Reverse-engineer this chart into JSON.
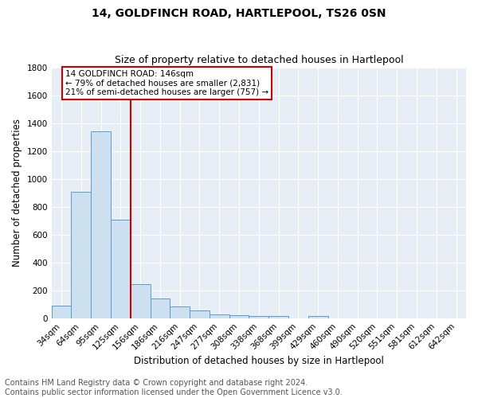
{
  "title": "14, GOLDFINCH ROAD, HARTLEPOOL, TS26 0SN",
  "subtitle": "Size of property relative to detached houses in Hartlepool",
  "xlabel": "Distribution of detached houses by size in Hartlepool",
  "ylabel": "Number of detached properties",
  "bar_labels": [
    "34sqm",
    "64sqm",
    "95sqm",
    "125sqm",
    "156sqm",
    "186sqm",
    "216sqm",
    "247sqm",
    "277sqm",
    "308sqm",
    "338sqm",
    "368sqm",
    "399sqm",
    "429sqm",
    "460sqm",
    "490sqm",
    "520sqm",
    "551sqm",
    "581sqm",
    "612sqm",
    "642sqm"
  ],
  "bar_values": [
    90,
    905,
    1340,
    705,
    245,
    140,
    85,
    55,
    28,
    22,
    18,
    15,
    0,
    18,
    0,
    0,
    0,
    0,
    0,
    0,
    0
  ],
  "bar_color": "#cce0f0",
  "bar_edge_color": "#5b9bd5",
  "ylim": [
    0,
    1800
  ],
  "yticks": [
    0,
    200,
    400,
    600,
    800,
    1000,
    1200,
    1400,
    1600,
    1800
  ],
  "vline_x": 3.5,
  "vline_color": "#cc0000",
  "annotation_text": "14 GOLDFINCH ROAD: 146sqm\n← 79% of detached houses are smaller (2,831)\n21% of semi-detached houses are larger (757) →",
  "annotation_box_color": "#ffffff",
  "annotation_box_edge_color": "#cc0000",
  "footer_text": "Contains HM Land Registry data © Crown copyright and database right 2024.\nContains public sector information licensed under the Open Government Licence v3.0.",
  "bg_color": "#e8eef5",
  "fig_color": "#ffffff",
  "title_fontsize": 10,
  "subtitle_fontsize": 9,
  "axis_label_fontsize": 8.5,
  "tick_fontsize": 7.5,
  "footer_fontsize": 7
}
